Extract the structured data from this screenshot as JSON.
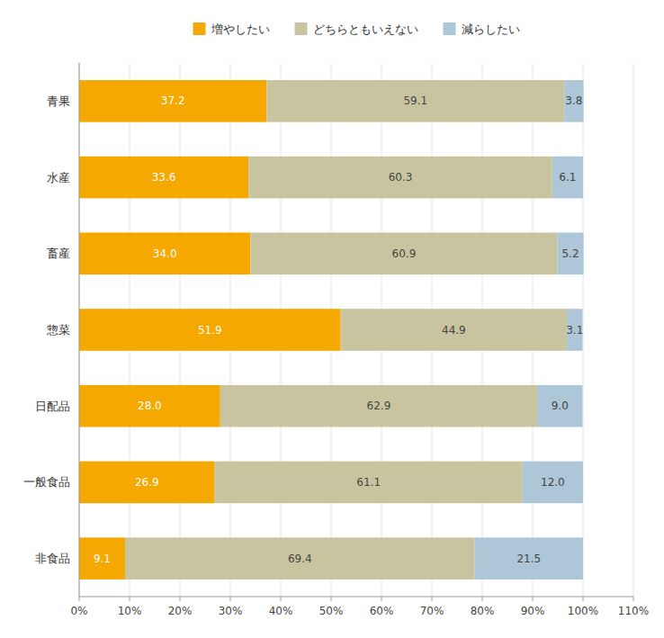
{
  "chart_data": {
    "type": "bar",
    "orientation": "horizontal",
    "stacked": true,
    "data_labels": true,
    "categories": [
      "青果",
      "水産",
      "畜産",
      "惣菜",
      "日配品",
      "一般食品",
      "非食品"
    ],
    "series": [
      {
        "name": "増やしたい",
        "color": "#F5A800",
        "values": [
          37.2,
          33.6,
          34.0,
          51.9,
          28.0,
          26.9,
          9.1
        ],
        "value_labels": [
          "37.2",
          "33.6",
          "34.0",
          "51.9",
          "28.0",
          "26.9",
          "9.1"
        ]
      },
      {
        "name": "どちらともいえない",
        "color": "#C8C4A0",
        "values": [
          59.1,
          60.3,
          60.9,
          44.9,
          62.9,
          61.1,
          69.4
        ],
        "value_labels": [
          "59.1",
          "60.3",
          "60.9",
          "44.9",
          "62.9",
          "61.1",
          "69.4"
        ]
      },
      {
        "name": "減らしたい",
        "color": "#ADC6D8",
        "values": [
          3.8,
          6.1,
          5.2,
          3.1,
          9.0,
          12.0,
          21.5
        ],
        "value_labels": [
          "3.8",
          "6.1",
          "5.2",
          "3.1",
          "9.0",
          "12.0",
          "21.5"
        ]
      }
    ],
    "xlim": [
      0,
      110
    ],
    "xticks": [
      {
        "value": 0,
        "label": "0%"
      },
      {
        "value": 10,
        "label": "10%"
      },
      {
        "value": 20,
        "label": "20%"
      },
      {
        "value": 30,
        "label": "30%"
      },
      {
        "value": 40,
        "label": "40%"
      },
      {
        "value": 50,
        "label": "50%"
      },
      {
        "value": 60,
        "label": "60%"
      },
      {
        "value": 70,
        "label": "70%"
      },
      {
        "value": 80,
        "label": "80%"
      },
      {
        "value": 90,
        "label": "90%"
      },
      {
        "value": 100,
        "label": "100%"
      },
      {
        "value": 110,
        "label": "110%"
      }
    ],
    "grid": true,
    "legend": "top"
  }
}
